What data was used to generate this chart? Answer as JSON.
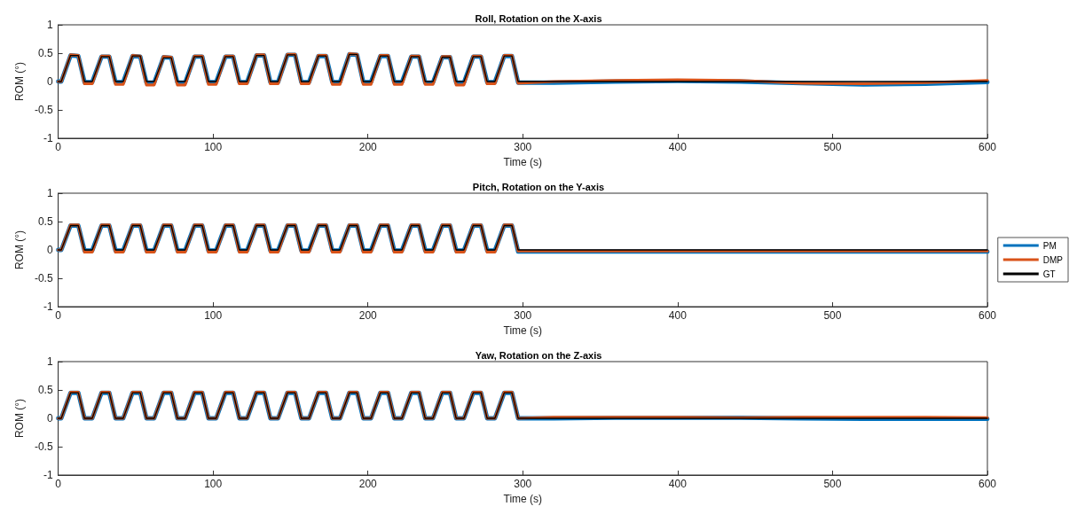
{
  "chart_data": [
    {
      "type": "line",
      "title": "Roll, Rotation on the X-axis",
      "xlabel": "Time (s)",
      "ylabel": "ROM (°)",
      "xlim": [
        0,
        600
      ],
      "xticks": [
        0,
        100,
        200,
        300,
        400,
        500,
        600
      ],
      "ylim": [
        -1,
        1
      ],
      "yticks": [
        -1,
        -0.5,
        0,
        0.5,
        1
      ],
      "grid": false,
      "legend": false,
      "marker": "none",
      "line_style": "solid",
      "x": [
        0,
        2,
        8,
        13,
        17,
        22,
        28,
        33,
        37,
        42,
        48,
        53,
        57,
        62,
        68,
        73,
        77,
        82,
        88,
        93,
        97,
        102,
        108,
        113,
        117,
        122,
        128,
        133,
        137,
        142,
        148,
        153,
        157,
        162,
        168,
        173,
        177,
        182,
        188,
        193,
        197,
        202,
        208,
        213,
        217,
        222,
        228,
        233,
        237,
        242,
        248,
        253,
        257,
        262,
        268,
        273,
        277,
        282,
        288,
        293,
        297,
        320,
        360,
        400,
        440,
        480,
        520,
        560,
        600
      ],
      "series": [
        {
          "color": "#0072bd",
          "values": [
            0,
            0,
            0.46,
            0.45,
            -0.01,
            -0.01,
            0.44,
            0.44,
            -0.01,
            -0.01,
            0.45,
            0.44,
            -0.02,
            -0.02,
            0.43,
            0.42,
            -0.02,
            -0.02,
            0.44,
            0.44,
            -0.01,
            -0.01,
            0.44,
            0.44,
            -0.01,
            -0.01,
            0.46,
            0.46,
            -0.01,
            -0.01,
            0.47,
            0.47,
            -0.01,
            -0.01,
            0.45,
            0.45,
            -0.01,
            -0.01,
            0.48,
            0.47,
            -0.01,
            -0.01,
            0.45,
            0.45,
            -0.01,
            -0.01,
            0.44,
            0.44,
            -0.02,
            -0.02,
            0.43,
            0.43,
            -0.02,
            -0.02,
            0.44,
            0.44,
            -0.01,
            -0.01,
            0.45,
            0.45,
            -0.02,
            -0.02,
            0,
            0.01,
            0,
            -0.03,
            -0.05,
            -0.04,
            -0.01
          ]
        },
        {
          "color": "#d95319",
          "values": [
            0,
            0,
            0.47,
            0.46,
            -0.04,
            -0.04,
            0.45,
            0.45,
            -0.05,
            -0.05,
            0.46,
            0.45,
            -0.06,
            -0.06,
            0.44,
            0.43,
            -0.06,
            -0.06,
            0.45,
            0.45,
            -0.05,
            -0.05,
            0.45,
            0.45,
            -0.04,
            -0.04,
            0.47,
            0.47,
            -0.04,
            -0.04,
            0.48,
            0.48,
            -0.04,
            -0.04,
            0.46,
            0.46,
            -0.05,
            -0.05,
            0.49,
            0.48,
            -0.05,
            -0.05,
            0.46,
            0.46,
            -0.05,
            -0.05,
            0.45,
            0.45,
            -0.05,
            -0.05,
            0.44,
            0.44,
            -0.06,
            -0.06,
            0.45,
            0.45,
            -0.04,
            -0.04,
            0.46,
            0.46,
            -0.03,
            0,
            0.02,
            0.03,
            0.02,
            -0.03,
            -0.04,
            -0.02,
            0.02
          ]
        },
        {
          "color": "#000000",
          "values": [
            0,
            0,
            0.46,
            0.46,
            0,
            0,
            0.44,
            0.44,
            0,
            0,
            0.45,
            0.45,
            0,
            0,
            0.42,
            0.42,
            0,
            0,
            0.44,
            0.44,
            0,
            0,
            0.44,
            0.44,
            0,
            0,
            0.46,
            0.46,
            0,
            0,
            0.47,
            0.47,
            0,
            0,
            0.45,
            0.45,
            0,
            0,
            0.48,
            0.48,
            0,
            0,
            0.45,
            0.45,
            0,
            0,
            0.44,
            0.44,
            0,
            0,
            0.43,
            0.43,
            0,
            0,
            0.44,
            0.44,
            0,
            0,
            0.45,
            0.45,
            0,
            0,
            0,
            0,
            0,
            0,
            0,
            0,
            0
          ]
        }
      ]
    },
    {
      "type": "line",
      "title": "Pitch, Rotation on the Y-axis",
      "xlabel": "Time (s)",
      "ylabel": "ROM (°)",
      "xlim": [
        0,
        600
      ],
      "xticks": [
        0,
        100,
        200,
        300,
        400,
        500,
        600
      ],
      "ylim": [
        -1,
        1
      ],
      "yticks": [
        -1,
        -0.5,
        0,
        0.5,
        1
      ],
      "grid": false,
      "legend": "right",
      "marker": "none",
      "line_style": "solid",
      "x": [
        0,
        2,
        8,
        13,
        17,
        22,
        28,
        33,
        37,
        42,
        48,
        53,
        57,
        62,
        68,
        73,
        77,
        82,
        88,
        93,
        97,
        102,
        108,
        113,
        117,
        122,
        128,
        133,
        137,
        142,
        148,
        153,
        157,
        162,
        168,
        173,
        177,
        182,
        188,
        193,
        197,
        202,
        208,
        213,
        217,
        222,
        228,
        233,
        237,
        242,
        248,
        253,
        257,
        262,
        268,
        273,
        277,
        282,
        288,
        293,
        297,
        320,
        360,
        400,
        440,
        480,
        520,
        560,
        600
      ],
      "series": [
        {
          "name": "PM",
          "color": "#0072bd",
          "values": [
            0,
            0,
            0.43,
            0.43,
            -0.01,
            -0.01,
            0.43,
            0.43,
            -0.01,
            -0.01,
            0.43,
            0.43,
            -0.01,
            -0.01,
            0.43,
            0.43,
            -0.01,
            -0.01,
            0.43,
            0.43,
            -0.01,
            -0.01,
            0.43,
            0.43,
            -0.01,
            -0.01,
            0.43,
            0.43,
            -0.01,
            -0.01,
            0.43,
            0.43,
            -0.01,
            -0.01,
            0.43,
            0.43,
            -0.01,
            -0.01,
            0.43,
            0.43,
            -0.01,
            -0.01,
            0.43,
            0.43,
            -0.01,
            -0.01,
            0.43,
            0.43,
            -0.01,
            -0.01,
            0.43,
            0.43,
            -0.01,
            -0.01,
            0.43,
            0.43,
            -0.01,
            -0.01,
            0.43,
            0.43,
            -0.03,
            -0.03,
            -0.03,
            -0.03,
            -0.03,
            -0.03,
            -0.03,
            -0.03,
            -0.03
          ]
        },
        {
          "name": "DMP",
          "color": "#d95319",
          "values": [
            0,
            0,
            0.44,
            0.44,
            -0.04,
            -0.04,
            0.44,
            0.44,
            -0.04,
            -0.04,
            0.44,
            0.44,
            -0.04,
            -0.04,
            0.44,
            0.44,
            -0.04,
            -0.04,
            0.44,
            0.44,
            -0.04,
            -0.04,
            0.44,
            0.44,
            -0.04,
            -0.04,
            0.44,
            0.44,
            -0.04,
            -0.04,
            0.44,
            0.44,
            -0.04,
            -0.04,
            0.44,
            0.44,
            -0.04,
            -0.04,
            0.44,
            0.44,
            -0.04,
            -0.04,
            0.44,
            0.44,
            -0.04,
            -0.04,
            0.44,
            0.44,
            -0.04,
            -0.04,
            0.44,
            0.44,
            -0.04,
            -0.04,
            0.44,
            0.44,
            -0.04,
            -0.04,
            0.44,
            0.44,
            -0.02,
            -0.02,
            -0.02,
            -0.02,
            -0.02,
            -0.02,
            -0.02,
            -0.02,
            -0.02
          ]
        },
        {
          "name": "GT",
          "color": "#000000",
          "values": [
            0,
            0,
            0.43,
            0.43,
            0,
            0,
            0.43,
            0.43,
            0,
            0,
            0.43,
            0.43,
            0,
            0,
            0.43,
            0.43,
            0,
            0,
            0.43,
            0.43,
            0,
            0,
            0.43,
            0.43,
            0,
            0,
            0.43,
            0.43,
            0,
            0,
            0.43,
            0.43,
            0,
            0,
            0.43,
            0.43,
            0,
            0,
            0.43,
            0.43,
            0,
            0,
            0.43,
            0.43,
            0,
            0,
            0.43,
            0.43,
            0,
            0,
            0.43,
            0.43,
            0,
            0,
            0.43,
            0.43,
            0,
            0,
            0.43,
            0.43,
            0,
            0,
            0,
            0,
            0,
            0,
            0,
            0,
            0
          ]
        }
      ]
    },
    {
      "type": "line",
      "title": "Yaw, Rotation on the Z-axis",
      "xlabel": "Time (s)",
      "ylabel": "ROM (°)",
      "xlim": [
        0,
        600
      ],
      "xticks": [
        0,
        100,
        200,
        300,
        400,
        500,
        600
      ],
      "ylim": [
        -1,
        1
      ],
      "yticks": [
        -1,
        -0.5,
        0,
        0.5,
        1
      ],
      "grid": false,
      "legend": false,
      "marker": "none",
      "line_style": "solid",
      "x": [
        0,
        2,
        8,
        13,
        17,
        22,
        28,
        33,
        37,
        42,
        48,
        53,
        57,
        62,
        68,
        73,
        77,
        82,
        88,
        93,
        97,
        102,
        108,
        113,
        117,
        122,
        128,
        133,
        137,
        142,
        148,
        153,
        157,
        162,
        168,
        173,
        177,
        182,
        188,
        193,
        197,
        202,
        208,
        213,
        217,
        222,
        228,
        233,
        237,
        242,
        248,
        253,
        257,
        262,
        268,
        273,
        277,
        282,
        288,
        293,
        297,
        320,
        360,
        400,
        440,
        480,
        520,
        560,
        600
      ],
      "series": [
        {
          "color": "#0072bd",
          "values": [
            0,
            0,
            0.45,
            0.45,
            0,
            0,
            0.45,
            0.45,
            0,
            0,
            0.45,
            0.45,
            0,
            0,
            0.45,
            0.45,
            0,
            0,
            0.45,
            0.45,
            0,
            0,
            0.45,
            0.45,
            0,
            0,
            0.45,
            0.45,
            0,
            0,
            0.45,
            0.45,
            0,
            0,
            0.45,
            0.45,
            0,
            0,
            0.45,
            0.45,
            0,
            0,
            0.45,
            0.45,
            0,
            0,
            0.45,
            0.45,
            0,
            0,
            0.45,
            0.45,
            0,
            0,
            0.45,
            0.45,
            0,
            0,
            0.45,
            0.45,
            0,
            0,
            0.01,
            0.01,
            0.01,
            0,
            -0.01,
            -0.01,
            -0.01
          ]
        },
        {
          "color": "#d95319",
          "values": [
            0,
            0,
            0.46,
            0.46,
            0,
            0,
            0.46,
            0.46,
            0,
            0,
            0.46,
            0.46,
            0,
            0,
            0.46,
            0.46,
            0,
            0,
            0.46,
            0.46,
            0,
            0,
            0.46,
            0.46,
            0,
            0,
            0.46,
            0.46,
            0,
            0,
            0.46,
            0.46,
            0,
            0,
            0.46,
            0.46,
            0,
            0,
            0.46,
            0.46,
            0,
            0,
            0.46,
            0.46,
            0,
            0,
            0.46,
            0.46,
            0,
            0,
            0.46,
            0.46,
            0,
            0,
            0.46,
            0.46,
            0,
            0,
            0.46,
            0.46,
            0,
            0.02,
            0.02,
            0.02,
            0.01,
            0.02,
            0.02,
            0.02,
            0.01
          ]
        },
        {
          "color": "#000000",
          "values": [
            0,
            0,
            0.45,
            0.45,
            0,
            0,
            0.45,
            0.45,
            0,
            0,
            0.45,
            0.45,
            0,
            0,
            0.45,
            0.45,
            0,
            0,
            0.45,
            0.45,
            0,
            0,
            0.45,
            0.45,
            0,
            0,
            0.45,
            0.45,
            0,
            0,
            0.45,
            0.45,
            0,
            0,
            0.45,
            0.45,
            0,
            0,
            0.45,
            0.45,
            0,
            0,
            0.45,
            0.45,
            0,
            0,
            0.45,
            0.45,
            0,
            0,
            0.45,
            0.45,
            0,
            0,
            0.45,
            0.45,
            0,
            0,
            0.45,
            0.45,
            0,
            0,
            0,
            0,
            0,
            0,
            0,
            0,
            0
          ]
        }
      ]
    }
  ]
}
